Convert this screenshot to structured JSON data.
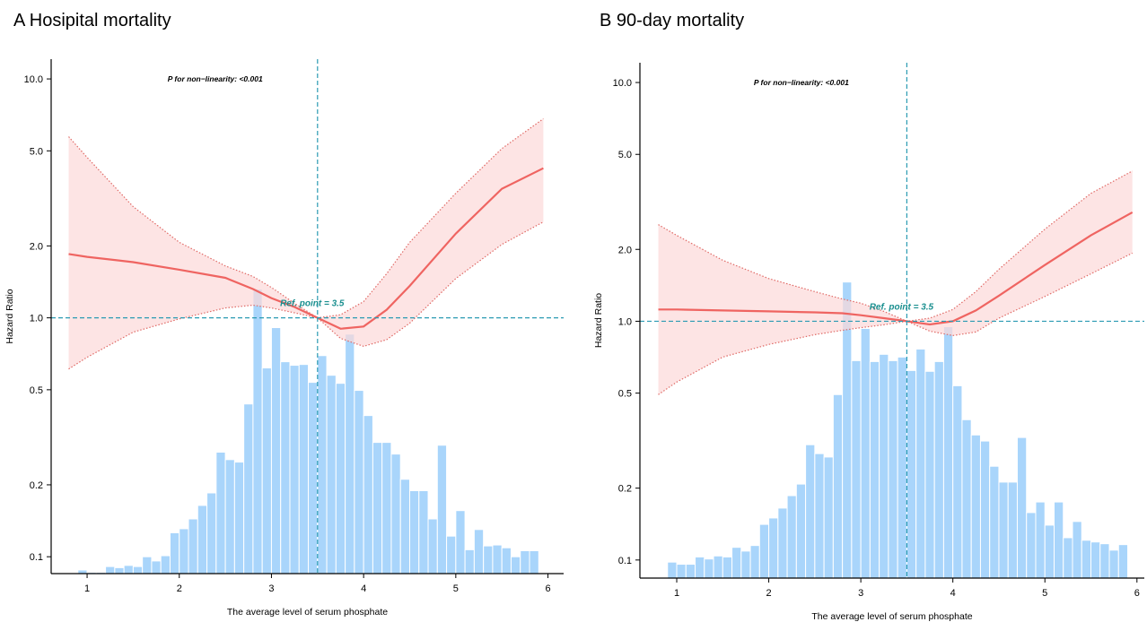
{
  "chart_data": [
    {
      "type": "line",
      "title": "A Hosipital mortality",
      "xlabel": "The average level of serum phosphate",
      "ylabel": "Hazard Ratio",
      "annotation": "P for non−linearity: <0.001",
      "ref_label": "Ref. point = 3.5",
      "ref_x": 3.5,
      "ref_y": 1,
      "ref_color": "#2b9bb3",
      "log_y": true,
      "x": [
        0.8,
        1.0,
        1.5,
        2.0,
        2.5,
        2.8,
        3.0,
        3.25,
        3.5,
        3.75,
        4.0,
        4.25,
        4.5,
        5.0,
        5.5,
        5.95
      ],
      "series": [
        {
          "color": "#ef6461",
          "values": [
            1.85,
            1.8,
            1.71,
            1.59,
            1.47,
            1.32,
            1.21,
            1.11,
            1.0,
            0.9,
            0.92,
            1.08,
            1.36,
            2.25,
            3.47,
            4.23
          ]
        }
      ],
      "band": {
        "color": "#fcd9d9",
        "edge_color": "#e06a66",
        "upper": [
          5.73,
          4.69,
          2.92,
          2.07,
          1.65,
          1.49,
          1.34,
          1.15,
          1.0,
          1.03,
          1.17,
          1.53,
          2.07,
          3.32,
          5.11,
          6.81
        ],
        "lower": [
          0.611,
          0.684,
          0.871,
          0.99,
          1.1,
          1.13,
          1.1,
          1.05,
          1.0,
          0.82,
          0.76,
          0.81,
          0.95,
          1.46,
          2.03,
          2.52
        ]
      },
      "histogram": {
        "color": "#a9d5fb",
        "bins": [
          0.9,
          1.0,
          1.1,
          1.2,
          1.3,
          1.4,
          1.5,
          1.6,
          1.7,
          1.8,
          1.9,
          2.0,
          2.1,
          2.2,
          2.3,
          2.4,
          2.5,
          2.6,
          2.7,
          2.8,
          2.9,
          3.0,
          3.1,
          3.2,
          3.3,
          3.4,
          3.5,
          3.6,
          3.7,
          3.8,
          3.9,
          4.0,
          4.1,
          4.2,
          4.3,
          4.4,
          4.5,
          4.6,
          4.7,
          4.8,
          4.9,
          5.0,
          5.1,
          5.2,
          5.3,
          5.4,
          5.5,
          5.6,
          5.7,
          5.8,
          5.9
        ],
        "values": [
          0.088,
          0.086,
          0.086,
          0.091,
          0.09,
          0.092,
          0.091,
          0.1,
          0.096,
          0.101,
          0.126,
          0.131,
          0.144,
          0.164,
          0.185,
          0.274,
          0.255,
          0.249,
          0.436,
          1.32,
          0.617,
          0.91,
          0.655,
          0.633,
          0.638,
          0.537,
          0.695,
          0.575,
          0.532,
          0.855,
          0.497,
          0.39,
          0.301,
          0.301,
          0.269,
          0.211,
          0.189,
          0.189,
          0.144,
          0.293,
          0.122,
          0.156,
          0.107,
          0.13,
          0.111,
          0.112,
          0.109,
          0.1,
          0.106,
          0.106
        ]
      },
      "xlim": [
        0.61,
        6.17
      ],
      "ylim": [
        0.085,
        12.1
      ],
      "xticks": [
        1,
        2,
        3,
        4,
        5,
        6
      ],
      "yticks": [
        {
          "value": 10,
          "label": "10.0"
        },
        {
          "value": 5,
          "label": "5.0"
        },
        {
          "value": 2,
          "label": "2.0"
        },
        {
          "value": 1,
          "label": "1.0"
        },
        0.5,
        0.2,
        0.1
      ]
    },
    {
      "type": "line",
      "title": "B 90-day mortality",
      "xlabel": "The average level of serum phosphate",
      "ylabel": "Hazard Ratio",
      "annotation": "P for non−linearity: <0.001",
      "ref_label": "Ref. point = 3.5",
      "ref_x": 3.5,
      "ref_y": 1,
      "ref_color": "#2b9bb3",
      "log_y": true,
      "x": [
        0.8,
        1.0,
        1.5,
        2.0,
        2.5,
        2.8,
        3.0,
        3.25,
        3.5,
        3.75,
        4.0,
        4.25,
        4.5,
        5.0,
        5.5,
        5.95
      ],
      "series": [
        {
          "color": "#ef6461",
          "values": [
            1.12,
            1.12,
            1.11,
            1.1,
            1.09,
            1.08,
            1.06,
            1.03,
            1.0,
            0.97,
            1.0,
            1.11,
            1.28,
            1.72,
            2.29,
            2.86
          ]
        }
      ],
      "band": {
        "color": "#fcd9d9",
        "edge_color": "#e06a66",
        "upper": [
          2.54,
          2.29,
          1.8,
          1.51,
          1.33,
          1.24,
          1.19,
          1.1,
          1.0,
          1.03,
          1.12,
          1.33,
          1.65,
          2.43,
          3.43,
          4.26
        ],
        "lower": [
          0.493,
          0.556,
          0.708,
          0.8,
          0.879,
          0.917,
          0.94,
          0.966,
          1.0,
          0.909,
          0.871,
          0.902,
          1.03,
          1.27,
          1.58,
          1.93
        ]
      },
      "histogram": {
        "color": "#a9d5fb",
        "bins": [
          0.9,
          1.0,
          1.1,
          1.2,
          1.3,
          1.4,
          1.5,
          1.6,
          1.7,
          1.8,
          1.9,
          2.0,
          2.1,
          2.2,
          2.3,
          2.4,
          2.5,
          2.6,
          2.7,
          2.8,
          2.9,
          3.0,
          3.1,
          3.2,
          3.3,
          3.4,
          3.5,
          3.6,
          3.7,
          3.8,
          3.9,
          4.0,
          4.1,
          4.2,
          4.3,
          4.4,
          4.5,
          4.6,
          4.7,
          4.8,
          4.9,
          5.0,
          5.1,
          5.2,
          5.3,
          5.4,
          5.5,
          5.6,
          5.7,
          5.8,
          5.9
        ],
        "values": [
          0.098,
          0.096,
          0.096,
          0.103,
          0.101,
          0.104,
          0.103,
          0.113,
          0.109,
          0.115,
          0.141,
          0.15,
          0.165,
          0.186,
          0.208,
          0.304,
          0.279,
          0.27,
          0.493,
          1.46,
          0.684,
          0.933,
          0.678,
          0.727,
          0.684,
          0.708,
          0.622,
          0.765,
          0.617,
          0.678,
          0.949,
          0.537,
          0.387,
          0.334,
          0.315,
          0.247,
          0.212,
          0.212,
          0.326,
          0.158,
          0.175,
          0.14,
          0.175,
          0.124,
          0.145,
          0.121,
          0.119,
          0.117,
          0.11,
          0.116
        ]
      },
      "xlim": [
        0.6,
        6.08
      ],
      "ylim": [
        0.084,
        12.1
      ],
      "xticks": [
        1,
        2,
        3,
        4,
        5,
        6
      ],
      "yticks": [
        {
          "value": 10,
          "label": "10.0"
        },
        {
          "value": 5,
          "label": "5.0"
        },
        {
          "value": 2,
          "label": "2.0"
        },
        {
          "value": 1,
          "label": "1.0"
        },
        0.5,
        0.2,
        0.1
      ]
    }
  ]
}
